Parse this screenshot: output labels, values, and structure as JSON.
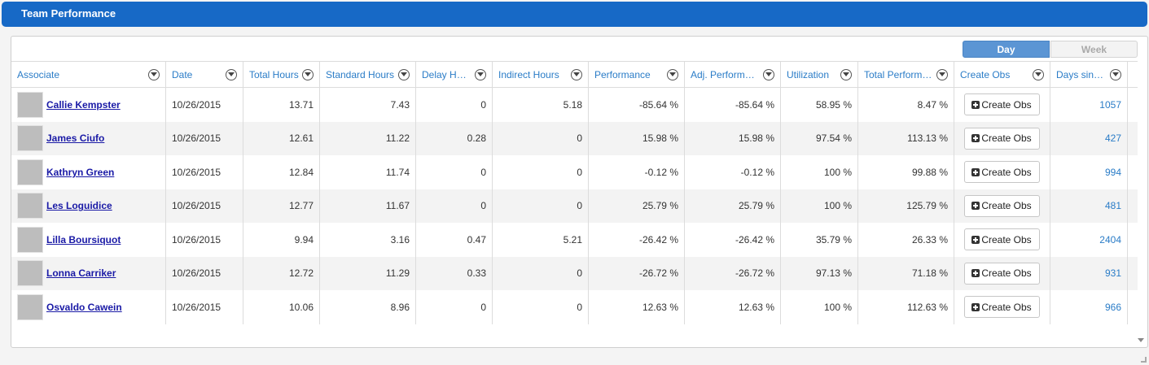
{
  "widget": {
    "title": "Team Performance"
  },
  "view_toggle": {
    "day_label": "Day",
    "week_label": "Week",
    "selected": "Day"
  },
  "table": {
    "columns": [
      "Associate",
      "Date",
      "Total Hours",
      "Standard Hours",
      "Delay Hours",
      "Indirect Hours",
      "Performance",
      "Adj. Performan…",
      "Utilization",
      "Total Performa…",
      "Create Obs",
      "Days sinc…"
    ],
    "create_obs_label": "Create Obs",
    "rows": [
      {
        "associate": "Callie Kempster",
        "date": "10/26/2015",
        "total_hours": "13.71",
        "standard_hours": "7.43",
        "delay_hours": "0",
        "indirect_hours": "5.18",
        "performance": "-85.64 %",
        "adj_performance": "-85.64 %",
        "utilization": "58.95 %",
        "total_performance": "8.47 %",
        "days_since": "1057"
      },
      {
        "associate": "James Ciufo",
        "date": "10/26/2015",
        "total_hours": "12.61",
        "standard_hours": "11.22",
        "delay_hours": "0.28",
        "indirect_hours": "0",
        "performance": "15.98 %",
        "adj_performance": "15.98 %",
        "utilization": "97.54 %",
        "total_performance": "113.13 %",
        "days_since": "427"
      },
      {
        "associate": "Kathryn Green",
        "date": "10/26/2015",
        "total_hours": "12.84",
        "standard_hours": "11.74",
        "delay_hours": "0",
        "indirect_hours": "0",
        "performance": "-0.12 %",
        "adj_performance": "-0.12 %",
        "utilization": "100 %",
        "total_performance": "99.88 %",
        "days_since": "994"
      },
      {
        "associate": "Les Loguidice",
        "date": "10/26/2015",
        "total_hours": "12.77",
        "standard_hours": "11.67",
        "delay_hours": "0",
        "indirect_hours": "0",
        "performance": "25.79 %",
        "adj_performance": "25.79 %",
        "utilization": "100 %",
        "total_performance": "125.79 %",
        "days_since": "481"
      },
      {
        "associate": "Lilla Boursiquot",
        "date": "10/26/2015",
        "total_hours": "9.94",
        "standard_hours": "3.16",
        "delay_hours": "0.47",
        "indirect_hours": "5.21",
        "performance": "-26.42 %",
        "adj_performance": "-26.42 %",
        "utilization": "35.79 %",
        "total_performance": "26.33 %",
        "days_since": "2404"
      },
      {
        "associate": "Lonna Carriker",
        "date": "10/26/2015",
        "total_hours": "12.72",
        "standard_hours": "11.29",
        "delay_hours": "0.33",
        "indirect_hours": "0",
        "performance": "-26.72 %",
        "adj_performance": "-26.72 %",
        "utilization": "97.13 %",
        "total_performance": "71.18 %",
        "days_since": "931"
      },
      {
        "associate": "Osvaldo Cawein",
        "date": "10/26/2015",
        "total_hours": "10.06",
        "standard_hours": "8.96",
        "delay_hours": "0",
        "indirect_hours": "0",
        "performance": "12.63 %",
        "adj_performance": "12.63 %",
        "utilization": "100 %",
        "total_performance": "112.63 %",
        "days_since": "966"
      }
    ]
  },
  "colors": {
    "title_bar": "#1769c6",
    "header_text": "#2a7cc7",
    "name_link": "#1a1aa6",
    "alt_row": "#f3f3f3"
  }
}
